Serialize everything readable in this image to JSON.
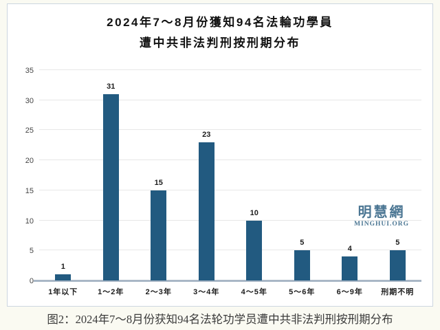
{
  "title": {
    "line1": "2024年7～8月份獲知94名法輪功學員",
    "line2": "遭中共非法判刑按刑期分布"
  },
  "watermark": {
    "cjk": "明慧網",
    "latin": "MINGHUI.ORG"
  },
  "caption": "图2：2024年7～8月份获知94名法轮功学员遭中共非法判刑按刑期分布",
  "colors": {
    "bar": "#225a80",
    "axis_line": "#a9b7c6",
    "gridline": "#e7e7e7",
    "frame_border": "#ccd6e0",
    "page_background": "#fafaf2",
    "watermark": "#4b7693"
  },
  "chart_data": {
    "type": "bar",
    "title": "2024年7～8月份獲知94名法輪功學員遭中共非法判刑按刑期分布",
    "categories": [
      "1年以下",
      "1～2年",
      "2～3年",
      "3～4年",
      "4～5年",
      "5～6年",
      "6～9年",
      "刑期不明"
    ],
    "values": [
      1,
      31,
      15,
      23,
      10,
      5,
      4,
      5
    ],
    "total": 94,
    "xlabel": "",
    "ylabel": "",
    "ylim": [
      0,
      35
    ],
    "yticks": [
      0,
      5,
      10,
      15,
      20,
      25,
      30,
      35
    ],
    "grid": true,
    "legend": false,
    "bar_labels_shown": true
  }
}
